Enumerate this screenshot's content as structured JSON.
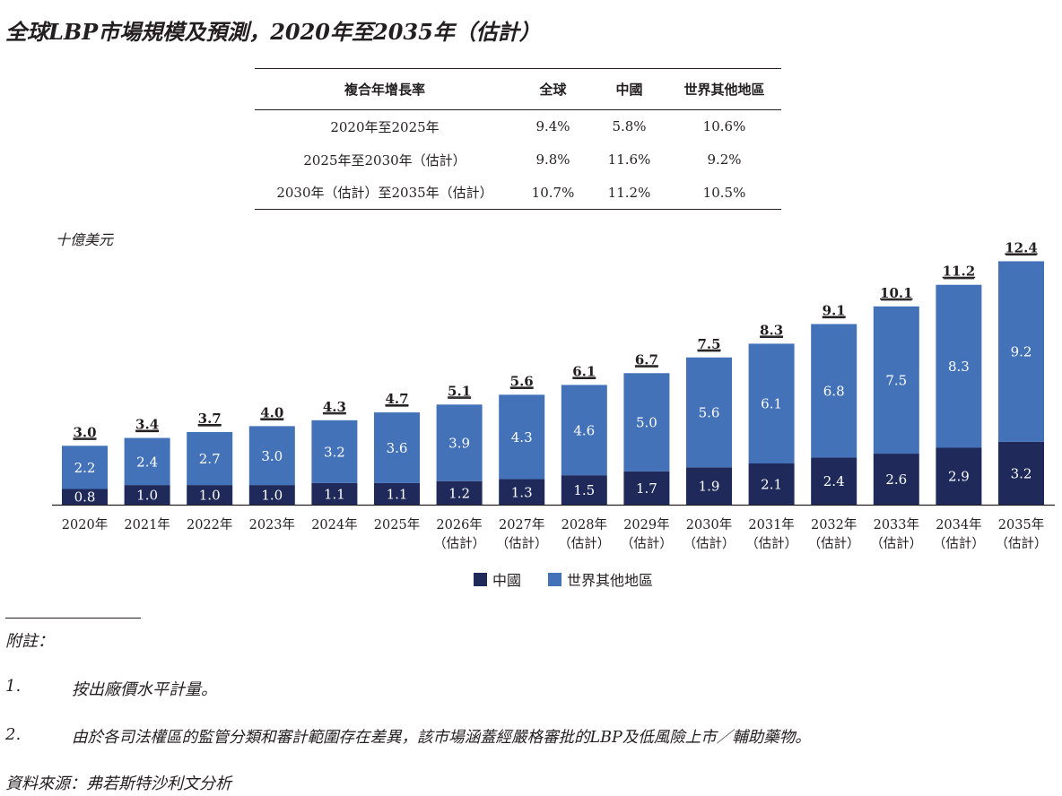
{
  "title": "全球LBP市場規模及預測，2020年至2035年（估計）",
  "cagr_table": {
    "headers": [
      "複合年增長率",
      "全球",
      "中國",
      "世界其他地區"
    ],
    "rows": [
      [
        "2020年至2025年",
        "9.4%",
        "5.8%",
        "10.6%"
      ],
      [
        "2025年至2030年（估計）",
        "9.8%",
        "11.6%",
        "9.2%"
      ],
      [
        "2030年（估計）至2035年（估計）",
        "10.7%",
        "11.2%",
        "10.5%"
      ]
    ]
  },
  "chart_data": {
    "type": "bar",
    "stacked": true,
    "ylabel": "十億美元",
    "categories": [
      "2020年",
      "2021年",
      "2022年",
      "2023年",
      "2024年",
      "2025年",
      "2026年",
      "2027年",
      "2028年",
      "2029年",
      "2030年",
      "2031年",
      "2032年",
      "2033年",
      "2034年",
      "2035年"
    ],
    "category_sublabels": [
      "",
      "",
      "",
      "",
      "",
      "",
      "（估計）",
      "（估計）",
      "（估計）",
      "（估計）",
      "（估計）",
      "（估計）",
      "（估計）",
      "（估計）",
      "（估計）",
      "（估計）"
    ],
    "series": [
      {
        "name": "中國",
        "color": "#1f2a5a",
        "values": [
          0.8,
          1.0,
          1.0,
          1.0,
          1.1,
          1.1,
          1.2,
          1.3,
          1.5,
          1.7,
          1.9,
          2.1,
          2.4,
          2.6,
          2.9,
          3.2
        ]
      },
      {
        "name": "世界其他地區",
        "color": "#4472b8",
        "values": [
          2.2,
          2.4,
          2.7,
          3.0,
          3.2,
          3.6,
          3.9,
          4.3,
          4.6,
          5.0,
          5.6,
          6.1,
          6.8,
          7.5,
          8.3,
          9.2
        ]
      }
    ],
    "totals": [
      3.0,
      3.4,
      3.7,
      4.0,
      4.3,
      4.7,
      5.1,
      5.6,
      6.1,
      6.7,
      7.5,
      8.3,
      9.1,
      10.1,
      11.2,
      12.4
    ],
    "legend": "bottom-center",
    "grid": false
  },
  "notes": {
    "heading": "附註：",
    "items": [
      {
        "num": "1.",
        "text": "按出廠價水平計量。"
      },
      {
        "num": "2.",
        "text": "由於各司法權區的監管分類和審計範圍存在差異，該市場涵蓋經嚴格審批的LBP及低風險上市／輔助藥物。"
      }
    ],
    "source": "資料來源：弗若斯特沙利文分析"
  }
}
